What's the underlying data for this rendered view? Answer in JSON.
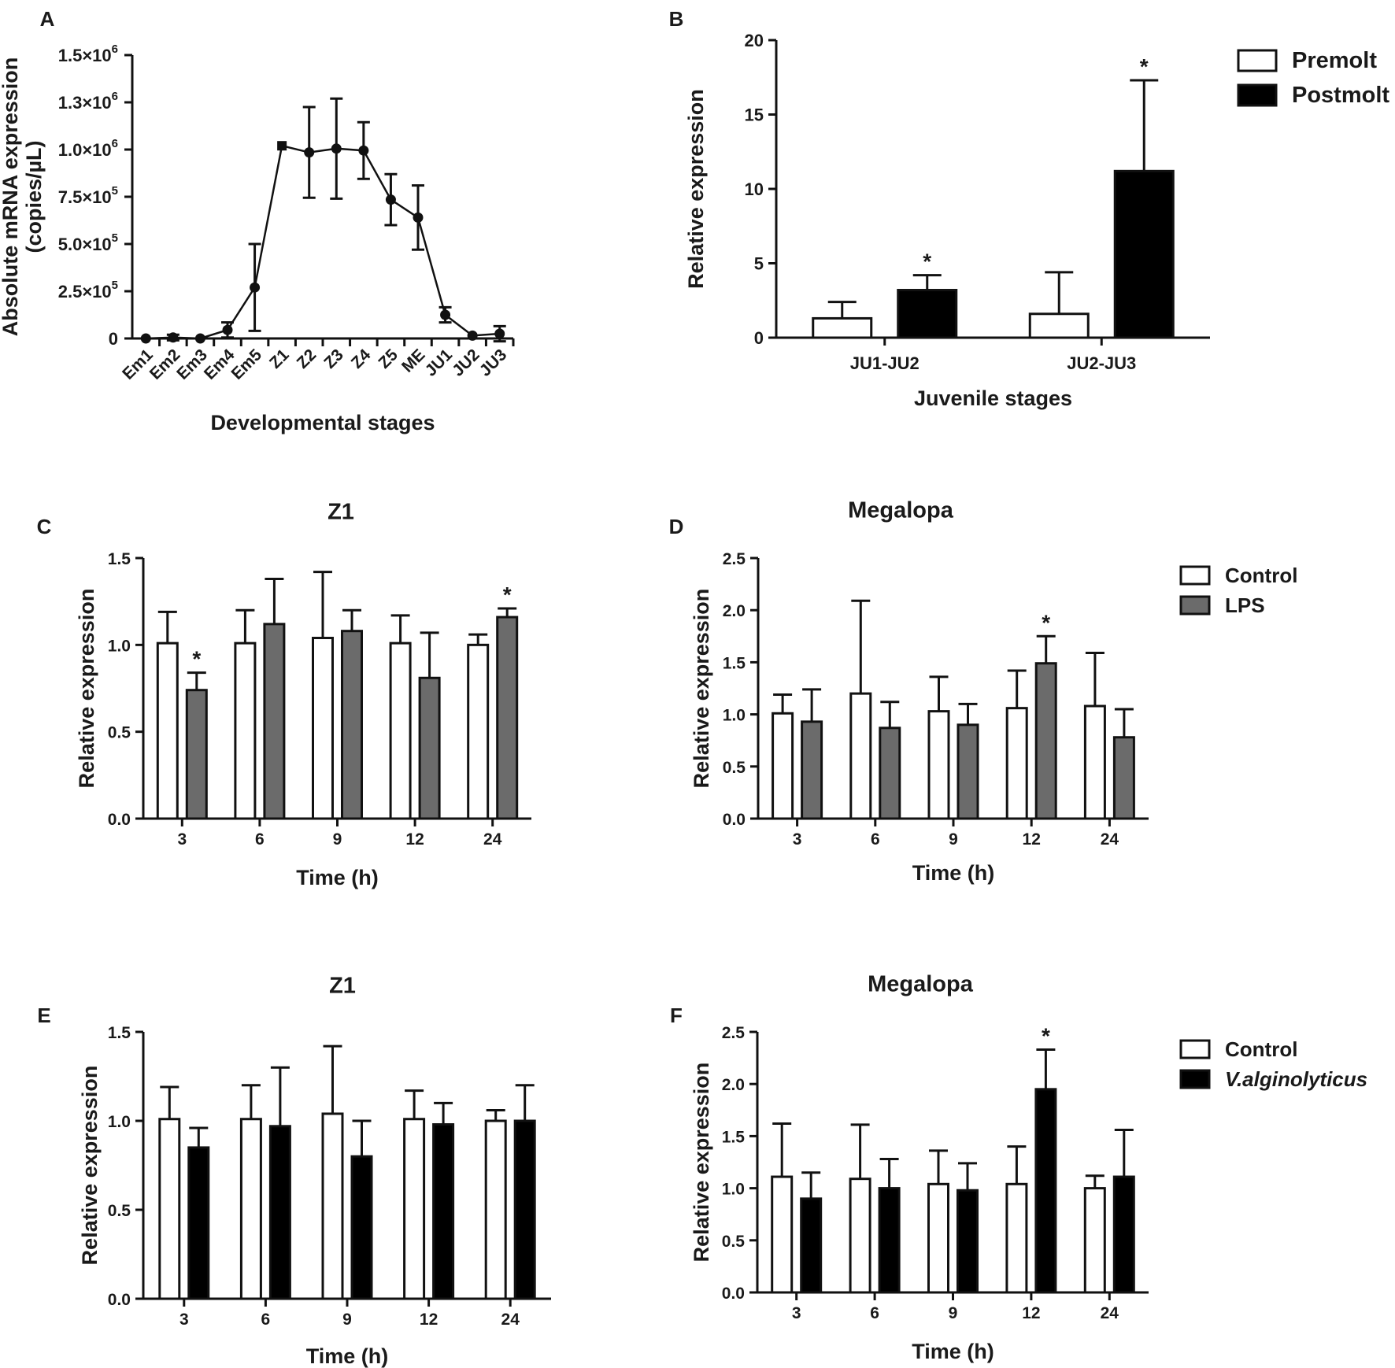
{
  "colors": {
    "control": "#ffffff",
    "lps": "#6b6b6b",
    "vibrio": "#000000",
    "premolt": "#ffffff",
    "postmolt": "#000000",
    "axis": "#111111"
  },
  "chart_data": [
    {
      "id": "A",
      "type": "line",
      "panel_label": "A",
      "title": "",
      "xlabel": "Developmental  stages",
      "ylabel_line1": "Absolute mRNA expression",
      "ylabel_line2": "(copies/µL)",
      "categories": [
        "Em1",
        "Em2",
        "Em3",
        "Em4",
        "Em5",
        "Z1",
        "Z2",
        "Z3",
        "Z4",
        "Z5",
        "ME",
        "JU1",
        "JU2",
        "JU3"
      ],
      "values": [
        0,
        5000,
        0,
        45000,
        270000,
        1020000,
        985000,
        1005000,
        995000,
        735000,
        640000,
        125000,
        15000,
        25000
      ],
      "errors": [
        0,
        15000,
        0,
        40000,
        230000,
        0,
        240000,
        265000,
        150000,
        135000,
        170000,
        40000,
        0,
        40000
      ],
      "ylim": [
        0,
        1500000
      ],
      "yticks": [
        {
          "value": 0,
          "mant": "0",
          "exp": ""
        },
        {
          "value": 250000,
          "mant": "2.5×10",
          "exp": "5"
        },
        {
          "value": 500000,
          "mant": "5.0×10",
          "exp": "5"
        },
        {
          "value": 750000,
          "mant": "7.5×10",
          "exp": "5"
        },
        {
          "value": 1000000,
          "mant": "1.0×10",
          "exp": "6"
        },
        {
          "value": 1250000,
          "mant": "1.3×10",
          "exp": "6"
        },
        {
          "value": 1500000,
          "mant": "1.5×10",
          "exp": "6"
        }
      ]
    },
    {
      "id": "B",
      "type": "bar",
      "panel_label": "B",
      "title": "",
      "xlabel": "Juvenile stages",
      "ylabel": "Relative expression",
      "categories": [
        "JU1-JU2",
        "JU2-JU3"
      ],
      "series": [
        {
          "name": "Premolt",
          "values": [
            1.3,
            1.6
          ],
          "errors": [
            1.1,
            2.8
          ],
          "sig": [
            false,
            false
          ]
        },
        {
          "name": "Postmolt",
          "values": [
            3.2,
            11.2
          ],
          "errors": [
            1.0,
            6.1
          ],
          "sig": [
            true,
            true
          ]
        }
      ],
      "ylim": [
        0,
        20
      ],
      "yticks": [
        0,
        5,
        10,
        15,
        20
      ],
      "star_label": "*"
    },
    {
      "id": "C",
      "type": "bar",
      "panel_label": "C",
      "title": "Z1",
      "xlabel": "Time (h)",
      "ylabel": "Relative expression",
      "categories": [
        "3",
        "6",
        "9",
        "12",
        "24"
      ],
      "series": [
        {
          "name": "Control",
          "values": [
            1.01,
            1.01,
            1.04,
            1.01,
            1.0
          ],
          "errors": [
            0.18,
            0.19,
            0.38,
            0.16,
            0.06
          ],
          "sig": [
            false,
            false,
            false,
            false,
            false
          ]
        },
        {
          "name": "LPS",
          "values": [
            0.74,
            1.12,
            1.08,
            0.81,
            1.16
          ],
          "errors": [
            0.1,
            0.26,
            0.12,
            0.26,
            0.05
          ],
          "sig": [
            true,
            false,
            false,
            false,
            true
          ]
        }
      ],
      "ylim": [
        0,
        1.5
      ],
      "yticks": [
        "0.0",
        "0.5",
        "1.0",
        "1.5"
      ],
      "star_label": "*"
    },
    {
      "id": "D",
      "type": "bar",
      "panel_label": "D",
      "title": "Megalopa",
      "xlabel": "Time (h)",
      "ylabel": "Relative expression",
      "categories": [
        "3",
        "6",
        "9",
        "12",
        "24"
      ],
      "series": [
        {
          "name": "Control",
          "values": [
            1.01,
            1.2,
            1.03,
            1.06,
            1.08
          ],
          "errors": [
            0.18,
            0.89,
            0.33,
            0.36,
            0.51
          ],
          "sig": [
            false,
            false,
            false,
            false,
            false
          ]
        },
        {
          "name": "LPS",
          "values": [
            0.93,
            0.87,
            0.9,
            1.49,
            0.78
          ],
          "errors": [
            0.31,
            0.25,
            0.2,
            0.26,
            0.27
          ],
          "sig": [
            false,
            false,
            false,
            true,
            false
          ]
        }
      ],
      "ylim": [
        0,
        2.5
      ],
      "yticks": [
        "0.0",
        "0.5",
        "1.0",
        "1.5",
        "2.0",
        "2.5"
      ],
      "legend": [
        "Control",
        "LPS"
      ],
      "star_label": "*"
    },
    {
      "id": "E",
      "type": "bar",
      "panel_label": "E",
      "title": "Z1",
      "xlabel": "Time (h)",
      "ylabel": "Relative expression",
      "categories": [
        "3",
        "6",
        "9",
        "12",
        "24"
      ],
      "series": [
        {
          "name": "Control",
          "values": [
            1.01,
            1.01,
            1.04,
            1.01,
            1.0
          ],
          "errors": [
            0.18,
            0.19,
            0.38,
            0.16,
            0.06
          ],
          "sig": [
            false,
            false,
            false,
            false,
            false
          ]
        },
        {
          "name": "V.alginolyticus",
          "values": [
            0.85,
            0.97,
            0.8,
            0.98,
            1.0
          ],
          "errors": [
            0.11,
            0.33,
            0.2,
            0.12,
            0.2
          ],
          "sig": [
            false,
            false,
            false,
            false,
            false
          ]
        }
      ],
      "ylim": [
        0,
        1.5
      ],
      "yticks": [
        "0.0",
        "0.5",
        "1.0",
        "1.5"
      ],
      "star_label": "*"
    },
    {
      "id": "F",
      "type": "bar",
      "panel_label": "F",
      "title": "Megalopa",
      "xlabel": "Time (h)",
      "ylabel": "Relative expression",
      "categories": [
        "3",
        "6",
        "9",
        "12",
        "24"
      ],
      "series": [
        {
          "name": "Control",
          "values": [
            1.11,
            1.09,
            1.04,
            1.04,
            1.0
          ],
          "errors": [
            0.51,
            0.52,
            0.32,
            0.36,
            0.12
          ],
          "sig": [
            false,
            false,
            false,
            false,
            false
          ]
        },
        {
          "name": "V.alginolyticus",
          "values": [
            0.9,
            1.0,
            0.98,
            1.95,
            1.11
          ],
          "errors": [
            0.25,
            0.28,
            0.26,
            0.38,
            0.45
          ],
          "sig": [
            false,
            false,
            false,
            true,
            false
          ]
        }
      ],
      "ylim": [
        0,
        2.5
      ],
      "yticks": [
        "0.0",
        "0.5",
        "1.0",
        "1.5",
        "2.0",
        "2.5"
      ],
      "legend": [
        "Control",
        "V.alginolyticus"
      ],
      "star_label": "*"
    }
  ]
}
